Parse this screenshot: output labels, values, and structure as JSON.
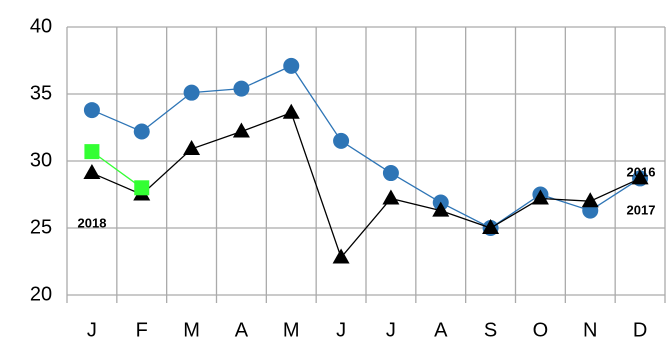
{
  "chart_data": {
    "type": "line",
    "categories": [
      "J",
      "F",
      "M",
      "A",
      "M",
      "J",
      "J",
      "A",
      "S",
      "O",
      "N",
      "D"
    ],
    "series": [
      {
        "name": "2016",
        "color": "#2e75b6",
        "marker": "circle",
        "values": [
          33.8,
          32.2,
          35.1,
          35.4,
          37.1,
          31.5,
          29.1,
          26.9,
          25.0,
          27.5,
          26.3,
          28.7
        ]
      },
      {
        "name": "2017",
        "color": "#000000",
        "marker": "triangle",
        "values": [
          29.1,
          27.5,
          30.9,
          32.2,
          33.6,
          22.8,
          27.2,
          26.3,
          25.0,
          27.2,
          27.0,
          28.7
        ]
      },
      {
        "name": "2018",
        "color": "#33ff33",
        "marker": "square",
        "values": [
          30.7,
          28.0,
          null,
          null,
          null,
          null,
          null,
          null,
          null,
          null,
          null,
          null
        ]
      }
    ],
    "ylim": [
      20,
      40
    ],
    "yticks": [
      20,
      25,
      30,
      35,
      40
    ],
    "grid": true
  }
}
